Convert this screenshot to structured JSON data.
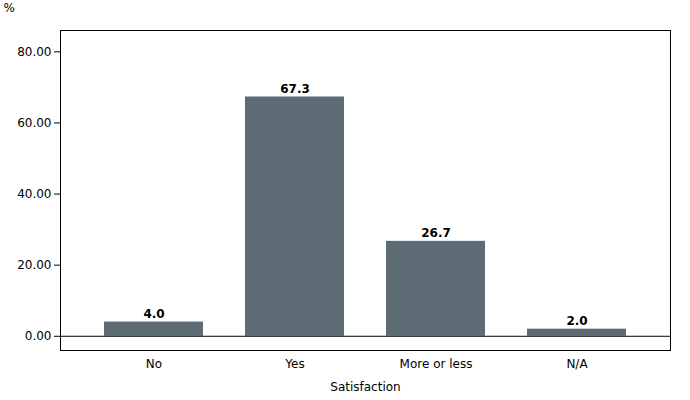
{
  "chart_data": {
    "type": "bar",
    "categories": [
      "No",
      "Yes",
      "More or less",
      "N/A"
    ],
    "values": [
      4.0,
      67.3,
      26.7,
      2.0
    ],
    "value_labels": [
      "4.0",
      "67.3",
      "26.7",
      "2.0"
    ],
    "data_labels": true,
    "color": "#5c6b74",
    "xlabel": "Satisfaction",
    "ylabel": "%",
    "ylim": [
      -4,
      86
    ],
    "yticks": [
      {
        "value": 0,
        "label": "0.00"
      },
      {
        "value": 20,
        "label": "20.00"
      },
      {
        "value": 40,
        "label": "40.00"
      },
      {
        "value": 60,
        "label": "60.00"
      },
      {
        "value": 80,
        "label": "80.00"
      }
    ],
    "grid": false
  }
}
